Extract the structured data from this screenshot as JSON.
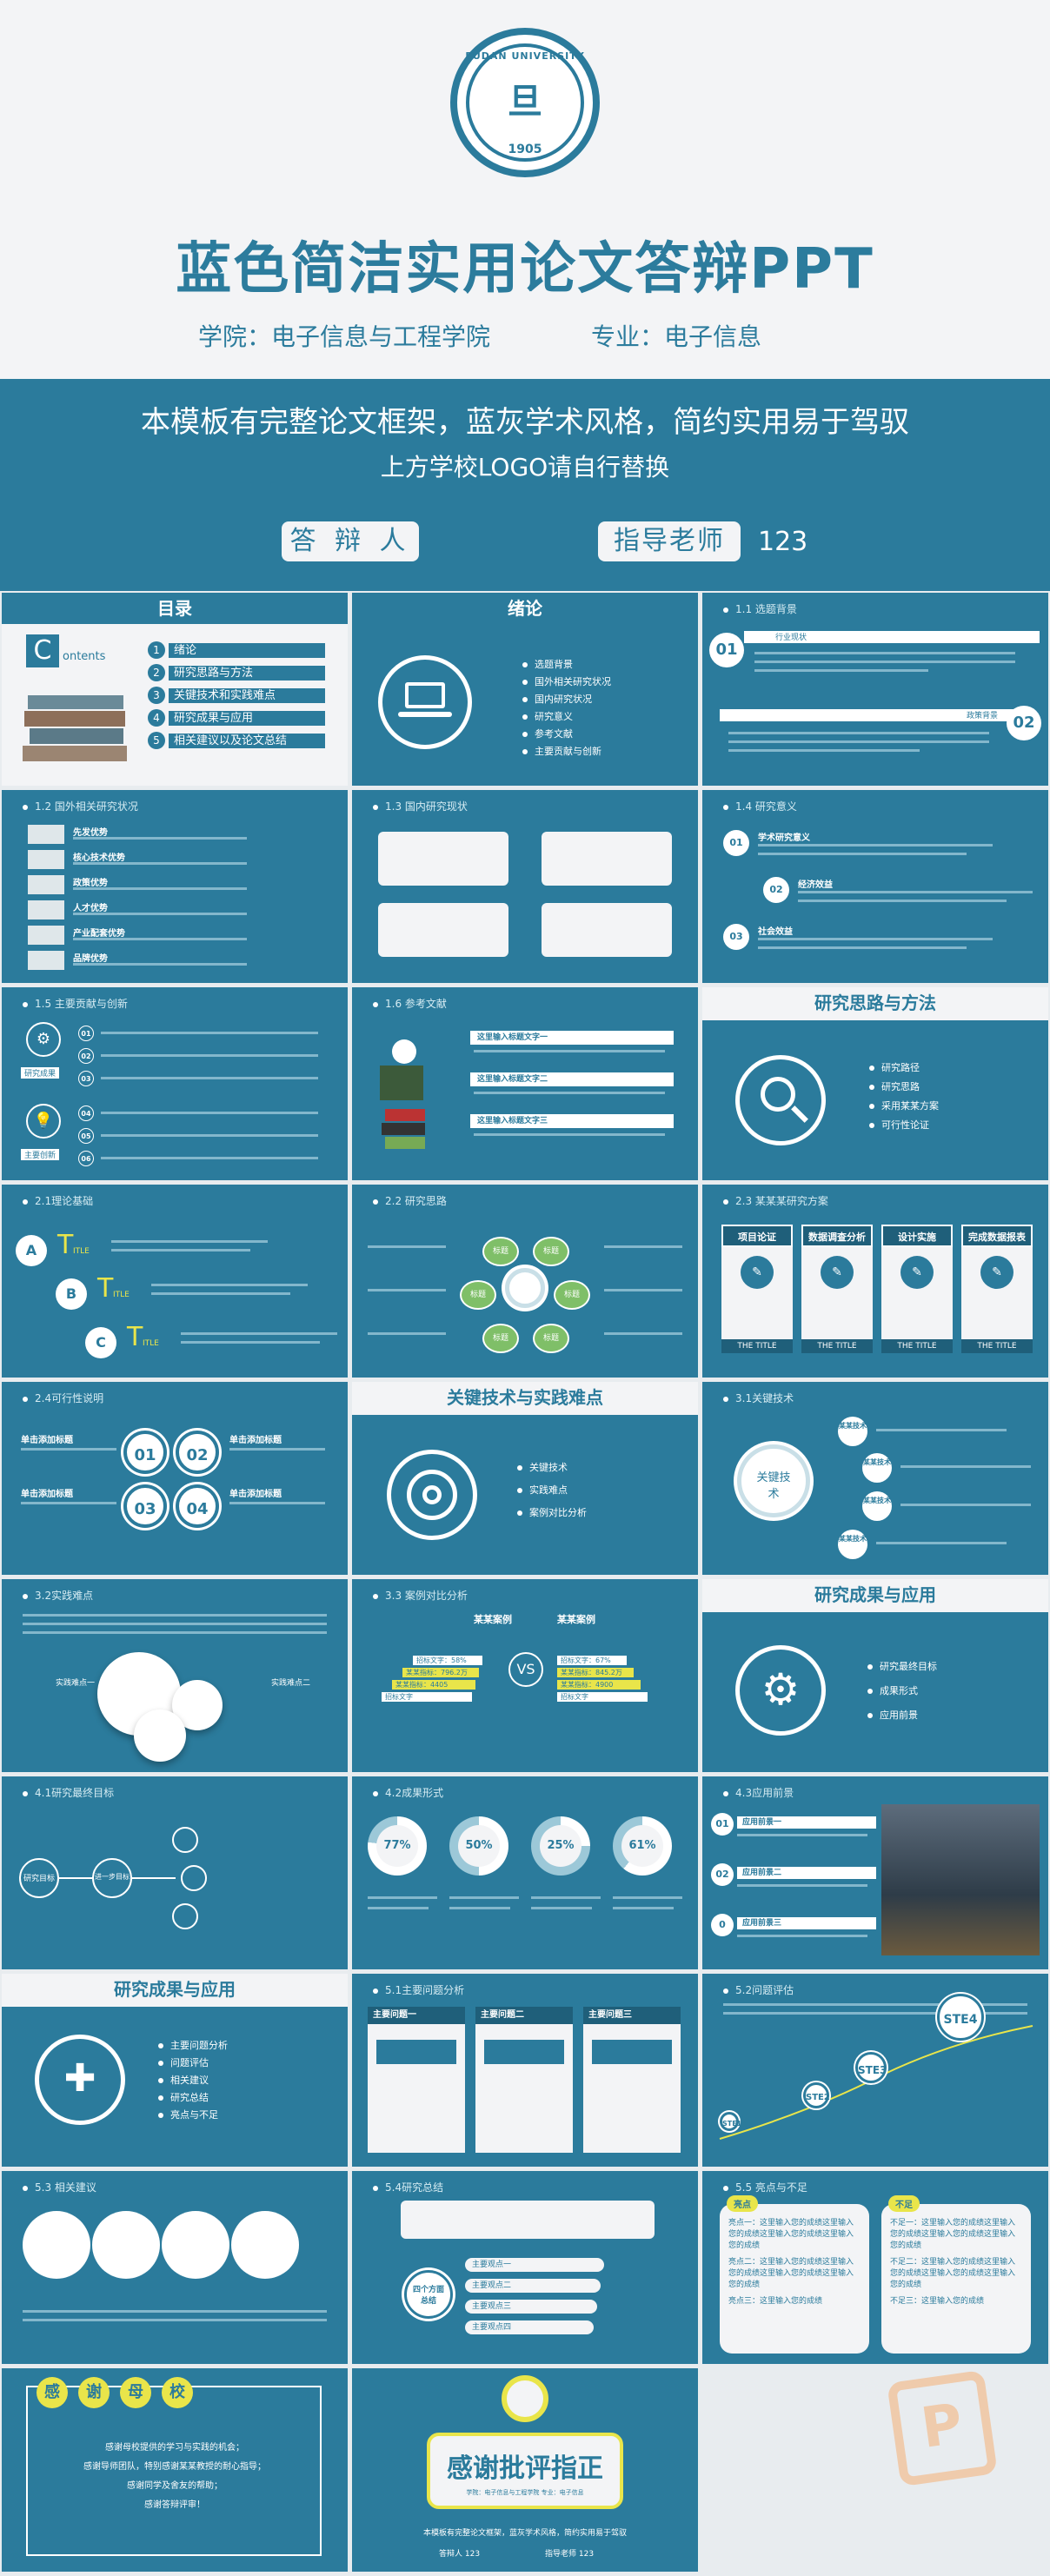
{
  "cover": {
    "logo": {
      "arc_text": "FUDAN UNIVERSITY",
      "glyph": "旦",
      "year": "1905"
    },
    "title": "蓝色简洁实用论文答辩PPT",
    "college": "学院：电子信息与工程学院",
    "major": "专业：电子信息",
    "tagline1": "本模板有完整论文框架，蓝灰学术风格，简约实用易于驾驭",
    "tagline2": "上方学校LOGO请自行替换",
    "defender_label": "答 辩 人",
    "advisor_label": "指导老师",
    "advisor_value": "123"
  },
  "slides": {
    "toc": {
      "title": "目录",
      "contents_letter": "C",
      "contents_word": "ontents",
      "items": [
        {
          "num": "1",
          "label": "绪论"
        },
        {
          "num": "2",
          "label": "研究思路与方法"
        },
        {
          "num": "3",
          "label": "关键技术和实践难点"
        },
        {
          "num": "4",
          "label": "研究成果与应用"
        },
        {
          "num": "5",
          "label": "相关建议以及论文总结"
        }
      ]
    },
    "intro": {
      "title": "绪论",
      "items": [
        "选题背景",
        "国外相关研究状况",
        "国内研究状况",
        "研究意义",
        "参考文献",
        "主要贡献与创新"
      ]
    },
    "s1_1": {
      "head": "1.1 选题背景",
      "n1": "01",
      "n2": "02",
      "tag1": "行业现状",
      "tag2": "政策背景"
    },
    "s1_2": {
      "head": "1.2 国外相关研究状况",
      "items": [
        "先发优势",
        "核心技术优势",
        "政策优势",
        "人才优势",
        "产业配套优势",
        "品牌优势"
      ]
    },
    "s1_3": {
      "head": "1.3 国内研究现状"
    },
    "s1_4": {
      "head": "1.4 研究意义",
      "items": [
        {
          "n": "01",
          "t": "学术研究意义"
        },
        {
          "n": "02",
          "t": "经济效益"
        },
        {
          "n": "03",
          "t": "社会效益"
        }
      ]
    },
    "s1_5": {
      "head": "1.5 主要贡献与创新",
      "nums": [
        "01",
        "02",
        "03",
        "04",
        "05",
        "06"
      ],
      "cap1": "研究成果",
      "cap2": "主要创新"
    },
    "s1_6": {
      "head": "1.6 参考文献",
      "items": [
        "这里输入标题文字一",
        "这里输入标题文字二",
        "这里输入标题文字三"
      ]
    },
    "method": {
      "title": "研究思路与方法",
      "items": [
        "研究路径",
        "研究思路",
        "采用某某方案",
        "可行性论证"
      ]
    },
    "s2_1": {
      "head": "2.1理论基础",
      "letters": [
        "A",
        "B",
        "C"
      ],
      "big": "T",
      "small": "ITLE"
    },
    "s2_2": {
      "head": "2.2 研究思路",
      "petals": [
        "标题",
        "标题",
        "标题",
        "标题",
        "标题",
        "标题"
      ]
    },
    "s2_3": {
      "head": "2.3 某某某研究方案",
      "cols": [
        {
          "t": "项目论证",
          "b": "THE TITLE"
        },
        {
          "t": "数据调查分析",
          "b": "THE TITLE"
        },
        {
          "t": "设计实施",
          "b": "THE TITLE"
        },
        {
          "t": "完成数据报表",
          "b": "THE TITLE"
        }
      ]
    },
    "s2_4": {
      "head": "2.4可行性说明",
      "nums": [
        "01",
        "02",
        "03",
        "04"
      ],
      "label": "单击添加标题"
    },
    "key": {
      "title": "关键技术与实践难点",
      "items": [
        "关键技术",
        "实践难点",
        "案例对比分析"
      ]
    },
    "s3_1": {
      "head": "3.1关键技术",
      "center": "关键技术",
      "nodes": [
        "某某技术",
        "某某技术",
        "某某技术",
        "某某技术",
        "某某技术"
      ]
    },
    "s3_2": {
      "head": "3.2实践难点",
      "left": "实践难点一",
      "right": "实践难点二"
    },
    "s3_3": {
      "head": "3.3 案例对比分析",
      "left": "某某案例",
      "right": "某某案例",
      "vs": "VS",
      "lbars": [
        "招标文字：58%",
        "某某指标：796.2万",
        "某某指标：4405",
        "招标文字"
      ],
      "rbars": [
        "招标文字：67%",
        "某某指标：845.2万",
        "某某指标：4900",
        "招标文字"
      ]
    },
    "results": {
      "title": "研究成果与应用",
      "items": [
        "研究最终目标",
        "成果形式",
        "应用前景"
      ]
    },
    "s4_1": {
      "head": "4.1研究最终目标",
      "center": "研究目标",
      "mid": "进一步目标"
    },
    "s4_2": {
      "head": "4.2成果形式",
      "pcts": [
        "77%",
        "50%",
        "25%",
        "61%"
      ]
    },
    "s4_3": {
      "head": "4.3应用前景",
      "items": [
        {
          "n": "01",
          "t": "应用前景一"
        },
        {
          "n": "02",
          "t": "应用前景二"
        },
        {
          "n": "0",
          "t": "应用前景三"
        }
      ]
    },
    "results2": {
      "title": "研究成果与应用",
      "items": [
        "主要问题分析",
        "问题评估",
        "相关建议",
        "研究总结",
        "亮点与不足"
      ]
    },
    "s5_1": {
      "head": "5.1主要问题分析",
      "cols": [
        "主要问题一",
        "主要问题二",
        "主要问题三"
      ]
    },
    "s5_2": {
      "head": "5.2问题评估",
      "steps": [
        "STE1",
        "STE2",
        "STE3",
        "STE4"
      ]
    },
    "s5_3": {
      "head": "5.3 相关建议"
    },
    "s5_4": {
      "head": "5.4研究总结",
      "side": "四个方面总结",
      "items": [
        "主要观点一",
        "主要观点二",
        "主要观点三",
        "主要观点四"
      ]
    },
    "s5_5": {
      "head": "5.5 亮点与不足",
      "l": "亮点",
      "r": "不足",
      "lt": [
        "亮点一：这里输入您的成绩这里输入您的成绩这里输入您的成绩这里输入您的成绩",
        "亮点二：这里输入您的成绩这里输入您的成绩这里输入您的成绩这里输入您的成绩",
        "亮点三：这里输入您的成绩"
      ],
      "rt": [
        "不足一：这里输入您的成绩这里输入您的成绩这里输入您的成绩这里输入您的成绩",
        "不足二：这里输入您的成绩这里输入您的成绩这里输入您的成绩这里输入您的成绩",
        "不足三：这里输入您的成绩"
      ]
    },
    "thanks1": {
      "chars": [
        "感",
        "谢",
        "母",
        "校"
      ],
      "lines": [
        "感谢母校提供的学习与实践的机会；",
        "感谢导师团队，特别感谢某某教授的耐心指导；",
        "感谢同学及舍友的帮助；",
        "感谢答辩评审！"
      ]
    },
    "thanks2": {
      "big": "感谢批评指正",
      "sub": "学院：电子信息与工程学院    专业：电子信息",
      "foot": "本模板有完整论文框架，蓝灰学术风格，简约实用易于驾驭",
      "defender": "答辩人 123",
      "advisor": "指导老师 123"
    }
  },
  "watermark": "P",
  "colors": {
    "primary": "#2b7b9c",
    "light": "#f3f4f6",
    "accent": "#e9e54a"
  }
}
